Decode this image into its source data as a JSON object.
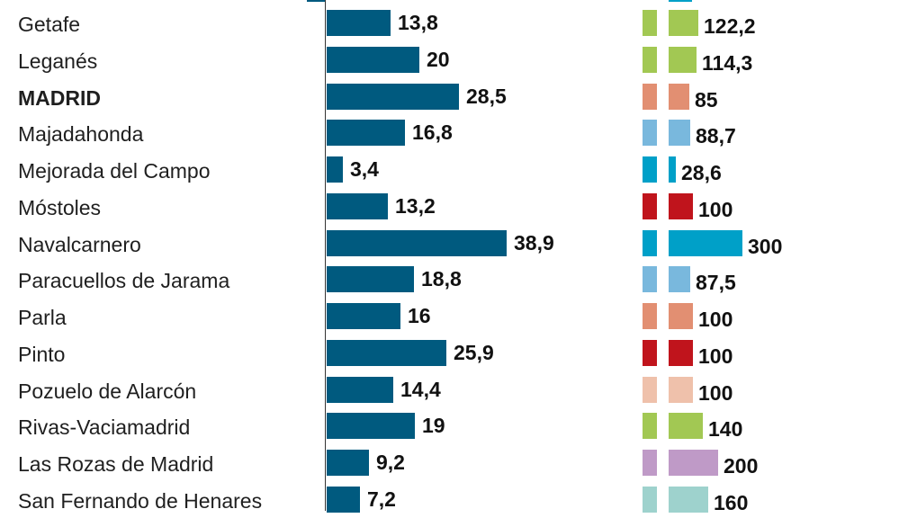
{
  "chart_data": {
    "type": "bar",
    "series": [
      {
        "values": [
          13.8,
          20,
          28.5,
          16.8,
          3.4,
          13.2,
          38.9,
          18.8,
          16,
          25.9,
          14.4,
          19,
          9.2,
          7.2
        ],
        "labels": [
          "13,8",
          "20",
          "28,5",
          "16,8",
          "3,4",
          "13,2",
          "38,9",
          "18,8",
          "16",
          "25,9",
          "14,4",
          "19",
          "9,2",
          "7,2"
        ]
      },
      {
        "values": [
          122.2,
          114.3,
          85,
          88.7,
          28.6,
          100,
          300,
          87.5,
          100,
          100,
          100,
          140,
          200,
          160
        ],
        "labels": [
          "122,2",
          "114,3",
          "85",
          "88,7",
          "28,6",
          "100",
          "300",
          "87,5",
          "100",
          "100",
          "100",
          "140",
          "200",
          "160"
        ]
      }
    ],
    "categories": [
      "Getafe",
      "Leganés",
      "MADRID",
      "Majadahonda",
      "Mejorada del Campo",
      "Móstoles",
      "Navalcarnero",
      "Paracuellos de Jarama",
      "Parla",
      "Pinto",
      "Pozuelo de Alarcón",
      "Rivas-Vaciamadrid",
      "Las Rozas de Madrid",
      "San Fernando de Henares"
    ],
    "bold_category": "MADRID",
    "colors": {
      "series1": "#005a7f",
      "series2_per_row": [
        "#a2c853",
        "#a2c853",
        "#e28f72",
        "#79b8dd",
        "#00a0c8",
        "#c0141c",
        "#00a0c8",
        "#79b8dd",
        "#e28f72",
        "#c0141c",
        "#efc1ab",
        "#a2c853",
        "#bf9ac7",
        "#9ed2cd"
      ]
    }
  }
}
